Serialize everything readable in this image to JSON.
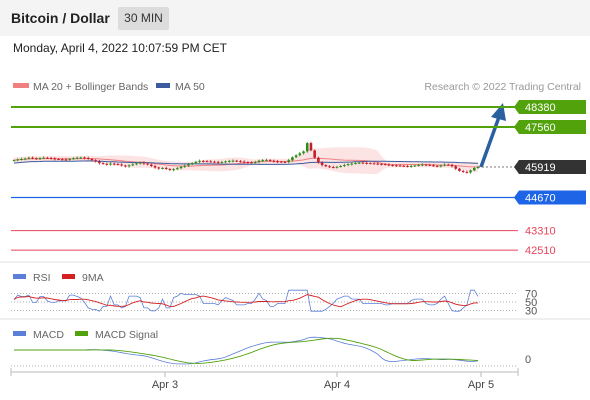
{
  "header": {
    "title": "Bitcoin / Dollar",
    "timeframe": "30 MIN",
    "datetime": "Monday, April 4, 2022 10:07:59 PM CET"
  },
  "colors": {
    "resistance": "#52a20c",
    "support": "#1e64e6",
    "target": "#e8445a",
    "bollinger": "#f08080",
    "bollinger_fill": "#fde4e4",
    "ma50": "#3b5aa0",
    "current": "#333333",
    "arrow": "#2a5fa0",
    "rsi": "#5b7fd8",
    "rsi_ma": "#d42020",
    "macd": "#5b7fd8",
    "macd_signal": "#52a20c",
    "candle_up": "#2e8b1e",
    "candle_down": "#c0202a"
  },
  "chart_data": {
    "type": "candlestick",
    "legend": [
      {
        "label": "MA 20 + Bollinger Bands",
        "color": "#f08080"
      },
      {
        "label": "MA 50",
        "color": "#3b5aa0"
      }
    ],
    "source": "Research © 2022 Trading Central",
    "x_ticks": [
      "Apr 3",
      "Apr 4",
      "Apr 5"
    ],
    "levels": [
      {
        "value": 48380,
        "label": "48380",
        "kind": "resistance"
      },
      {
        "value": 47560,
        "label": "47560",
        "kind": "resistance"
      },
      {
        "value": 45919,
        "label": "45919",
        "kind": "current"
      },
      {
        "value": 44670,
        "label": "44670",
        "kind": "support"
      },
      {
        "value": 43310,
        "label": "43310",
        "kind": "target"
      },
      {
        "value": 42510,
        "label": "42510",
        "kind": "target"
      }
    ],
    "closes": [
      46200,
      46230,
      46250,
      46270,
      46300,
      46280,
      46260,
      46280,
      46300,
      46290,
      46270,
      46250,
      46240,
      46230,
      46220,
      46250,
      46280,
      46300,
      46310,
      46290,
      46250,
      46200,
      46150,
      46080,
      46050,
      46020,
      46060,
      46040,
      46020,
      45980,
      45950,
      45990,
      46030,
      46070,
      46100,
      46060,
      46020,
      45960,
      45900,
      45860,
      45880,
      45840,
      45800,
      45830,
      45870,
      45930,
      45980,
      46030,
      46080,
      46130,
      46170,
      46160,
      46150,
      46140,
      46130,
      46110,
      46120,
      46150,
      46170,
      46180,
      46160,
      46140,
      46120,
      46110,
      46100,
      46120,
      46180,
      46200,
      46210,
      46180,
      46150,
      46140,
      46130,
      46120,
      46200,
      46320,
      46400,
      46480,
      46560,
      46900,
      46600,
      46300,
      46100,
      46000,
      45950,
      45920,
      45910,
      45930,
      45960,
      46000,
      46040,
      46060,
      46080,
      46100,
      46090,
      46080,
      46070,
      46060,
      46050,
      46040,
      46020,
      46000,
      45990,
      45980,
      45970,
      45960,
      45950,
      45960,
      45980,
      46000,
      46020,
      46010,
      45990,
      45970,
      45960,
      45980,
      46020,
      46010,
      45950,
      45850,
      45760,
      45720,
      45700,
      45780,
      45880,
      45919
    ],
    "rsi": {
      "label": "RSI",
      "ma_label": "9MA",
      "levels": [
        70,
        50,
        30
      ],
      "level_labels": [
        "70",
        "50",
        "30"
      ]
    },
    "macd": {
      "label": "MACD",
      "signal_label": "MACD Signal",
      "zero_label": "0"
    }
  }
}
